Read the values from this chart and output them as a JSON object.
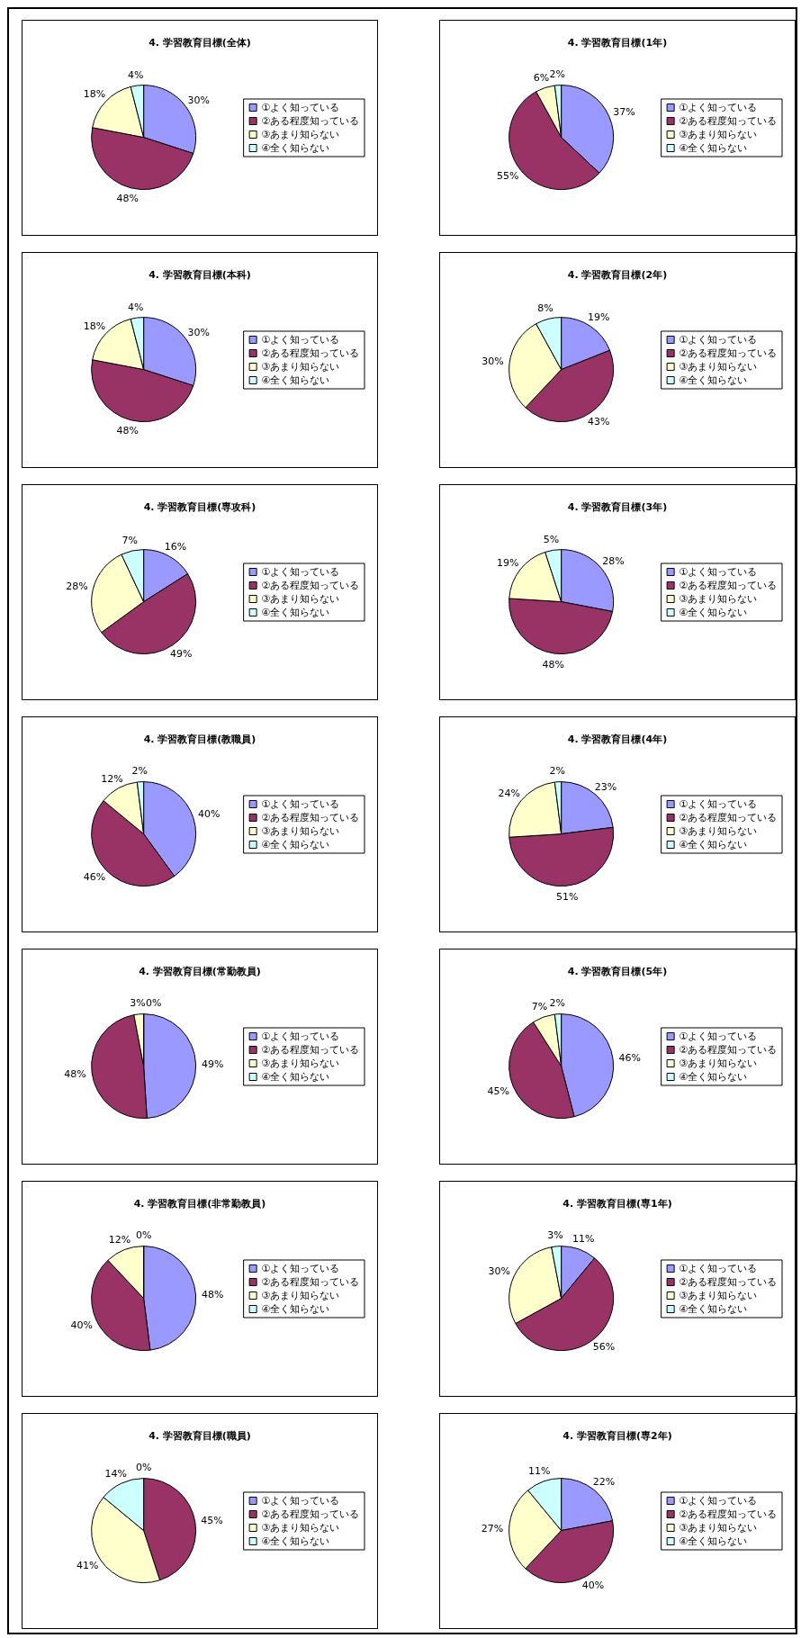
{
  "chart_data": [
    {
      "type": "pie",
      "title": "4. 学習教育目標(全体)",
      "categories": [
        "①よく知っている",
        "②ある程度知っている",
        "③あまり知らない",
        "④全く知らない"
      ],
      "values": [
        30,
        48,
        18,
        4
      ],
      "value_labels": [
        "30%",
        "48%",
        "18%",
        "4%"
      ],
      "colors": [
        "#9999ff",
        "#993366",
        "#ffffcc",
        "#ccffff"
      ],
      "legend": "right"
    },
    {
      "type": "pie",
      "title": "4. 学習教育目標(1年)",
      "categories": [
        "①よく知っている",
        "②ある程度知っている",
        "③あまり知らない",
        "④全く知らない"
      ],
      "values": [
        37,
        55,
        6,
        2
      ],
      "value_labels": [
        "37%",
        "55%",
        "6%",
        "2%"
      ],
      "colors": [
        "#9999ff",
        "#993366",
        "#ffffcc",
        "#ccffff"
      ],
      "legend": "right"
    },
    {
      "type": "pie",
      "title": "4. 学習教育目標(本科)",
      "categories": [
        "①よく知っている",
        "②ある程度知っている",
        "③あまり知らない",
        "④全く知らない"
      ],
      "values": [
        30,
        48,
        18,
        4
      ],
      "value_labels": [
        "30%",
        "48%",
        "18%",
        "4%"
      ],
      "colors": [
        "#9999ff",
        "#993366",
        "#ffffcc",
        "#ccffff"
      ],
      "legend": "right"
    },
    {
      "type": "pie",
      "title": "4. 学習教育目標(2年)",
      "categories": [
        "①よく知っている",
        "②ある程度知っている",
        "③あまり知らない",
        "④全く知らない"
      ],
      "values": [
        19,
        43,
        30,
        8
      ],
      "value_labels": [
        "19%",
        "43%",
        "30%",
        "8%"
      ],
      "colors": [
        "#9999ff",
        "#993366",
        "#ffffcc",
        "#ccffff"
      ],
      "legend": "right"
    },
    {
      "type": "pie",
      "title": "4. 学習教育目標(専攻科)",
      "categories": [
        "①よく知っている",
        "②ある程度知っている",
        "③あまり知らない",
        "④全く知らない"
      ],
      "values": [
        16,
        49,
        28,
        7
      ],
      "value_labels": [
        "16%",
        "49%",
        "28%",
        "7%"
      ],
      "colors": [
        "#9999ff",
        "#993366",
        "#ffffcc",
        "#ccffff"
      ],
      "legend": "right"
    },
    {
      "type": "pie",
      "title": "4. 学習教育目標(3年)",
      "categories": [
        "①よく知っている",
        "②ある程度知っている",
        "③あまり知らない",
        "④全く知らない"
      ],
      "values": [
        28,
        48,
        19,
        5
      ],
      "value_labels": [
        "28%",
        "48%",
        "19%",
        "5%"
      ],
      "colors": [
        "#9999ff",
        "#993366",
        "#ffffcc",
        "#ccffff"
      ],
      "legend": "right"
    },
    {
      "type": "pie",
      "title": "4. 学習教育目標(教職員)",
      "categories": [
        "①よく知っている",
        "②ある程度知っている",
        "③あまり知らない",
        "④全く知らない"
      ],
      "values": [
        40,
        46,
        12,
        2
      ],
      "value_labels": [
        "40%",
        "46%",
        "12%",
        "2%"
      ],
      "colors": [
        "#9999ff",
        "#993366",
        "#ffffcc",
        "#ccffff"
      ],
      "legend": "right"
    },
    {
      "type": "pie",
      "title": "4. 学習教育目標(4年)",
      "categories": [
        "①よく知っている",
        "②ある程度知っている",
        "③あまり知らない",
        "④全く知らない"
      ],
      "values": [
        23,
        51,
        24,
        2
      ],
      "value_labels": [
        "23%",
        "51%",
        "24%",
        "2%"
      ],
      "colors": [
        "#9999ff",
        "#993366",
        "#ffffcc",
        "#ccffff"
      ],
      "legend": "right"
    },
    {
      "type": "pie",
      "title": "4. 学習教育目標(常勤教員)",
      "categories": [
        "①よく知っている",
        "②ある程度知っている",
        "③あまり知らない",
        "④全く知らない"
      ],
      "values": [
        49,
        48,
        3,
        0
      ],
      "value_labels": [
        "49%",
        "48%",
        "3%",
        "0%"
      ],
      "colors": [
        "#9999ff",
        "#993366",
        "#ffffcc",
        "#ccffff"
      ],
      "legend": "right"
    },
    {
      "type": "pie",
      "title": "4. 学習教育目標(5年)",
      "categories": [
        "①よく知っている",
        "②ある程度知っている",
        "③あまり知らない",
        "④全く知らない"
      ],
      "values": [
        46,
        45,
        7,
        2
      ],
      "value_labels": [
        "46%",
        "45%",
        "7%",
        "2%"
      ],
      "colors": [
        "#9999ff",
        "#993366",
        "#ffffcc",
        "#ccffff"
      ],
      "legend": "right"
    },
    {
      "type": "pie",
      "title": "4. 学習教育目標(非常勤教員)",
      "categories": [
        "①よく知っている",
        "②ある程度知っている",
        "③あまり知らない",
        "④全く知らない"
      ],
      "values": [
        48,
        40,
        12,
        0
      ],
      "value_labels": [
        "48%",
        "40%",
        "12%",
        "0%"
      ],
      "colors": [
        "#9999ff",
        "#993366",
        "#ffffcc",
        "#ccffff"
      ],
      "legend": "right"
    },
    {
      "type": "pie",
      "title": "4. 学習教育目標(専1年)",
      "categories": [
        "①よく知っている",
        "②ある程度知っている",
        "③あまり知らない",
        "④全く知らない"
      ],
      "values": [
        11,
        56,
        30,
        3
      ],
      "value_labels": [
        "11%",
        "56%",
        "30%",
        "3%"
      ],
      "colors": [
        "#9999ff",
        "#993366",
        "#ffffcc",
        "#ccffff"
      ],
      "legend": "right"
    },
    {
      "type": "pie",
      "title": "4. 学習教育目標(職員)",
      "categories": [
        "①よく知っている",
        "②ある程度知っている",
        "③あまり知らない",
        "④全く知らない"
      ],
      "values": [
        0,
        45,
        41,
        14
      ],
      "value_labels": [
        "0%",
        "45%",
        "41%",
        "14%"
      ],
      "colors": [
        "#9999ff",
        "#993366",
        "#ffffcc",
        "#ccffff"
      ],
      "legend": "right"
    },
    {
      "type": "pie",
      "title": "4. 学習教育目標(専2年)",
      "categories": [
        "①よく知っている",
        "②ある程度知っている",
        "③あまり知らない",
        "④全く知らない"
      ],
      "values": [
        22,
        40,
        27,
        11
      ],
      "value_labels": [
        "22%",
        "40%",
        "27%",
        "11%"
      ],
      "colors": [
        "#9999ff",
        "#993366",
        "#ffffcc",
        "#ccffff"
      ],
      "legend": "right"
    }
  ]
}
